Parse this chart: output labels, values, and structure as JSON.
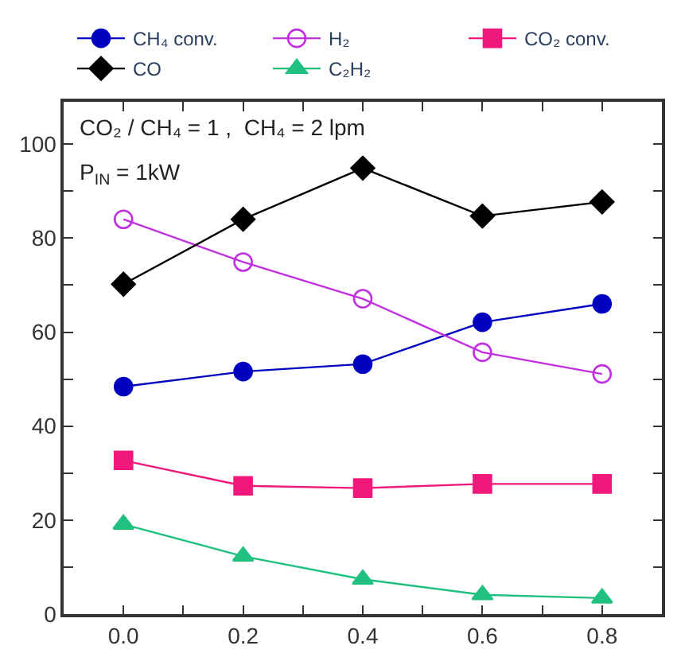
{
  "chart_data": {
    "type": "line",
    "x": [
      0.0,
      0.2,
      0.4,
      0.6,
      0.8
    ],
    "series": [
      {
        "name": "CH₄ conv.",
        "color": "#0000c0",
        "marker": "circle",
        "values": [
          48.4,
          51.6,
          53.2,
          62.1,
          66.0
        ]
      },
      {
        "name": "H₂",
        "color": "#c030e0",
        "marker": "circle-open",
        "values": [
          84.0,
          74.9,
          67.1,
          55.7,
          51.1
        ]
      },
      {
        "name": "CO₂ conv.",
        "color": "#f0187a",
        "marker": "square",
        "values": [
          32.7,
          27.3,
          26.8,
          27.7,
          27.7
        ]
      },
      {
        "name": "CO",
        "color": "#000000",
        "marker": "diamond",
        "values": [
          70.2,
          84.0,
          94.9,
          84.7,
          87.7
        ]
      },
      {
        "name": "C₂H₂",
        "color": "#20c080",
        "marker": "triangle",
        "values": [
          19.1,
          12.3,
          7.4,
          4.1,
          3.4
        ]
      }
    ],
    "xlim": [
      -0.1,
      0.9
    ],
    "xticks": [
      {
        "value": 0,
        "label": "0.0"
      },
      {
        "value": 0.1,
        "label": null
      },
      0.2,
      {
        "value": 0.3,
        "label": null
      },
      0.4,
      {
        "value": 0.5,
        "label": null
      },
      0.6,
      {
        "value": 0.7,
        "label": null
      },
      0.8
    ],
    "ylim": [
      0,
      109
    ],
    "yticks": [
      0,
      {
        "value": 10,
        "label": null
      },
      20,
      {
        "value": 30,
        "label": null
      },
      40,
      {
        "value": 50,
        "label": null
      },
      60,
      {
        "value": 70,
        "label": null
      },
      80,
      {
        "value": 90,
        "label": null
      },
      100
    ],
    "annotations": [
      "CO₂ / CH₄ = 1 ,  CH₄ = 2 lpm",
      "P$_{IN}$ = 1kW"
    ],
    "legend": "top",
    "line_style": "solid"
  }
}
